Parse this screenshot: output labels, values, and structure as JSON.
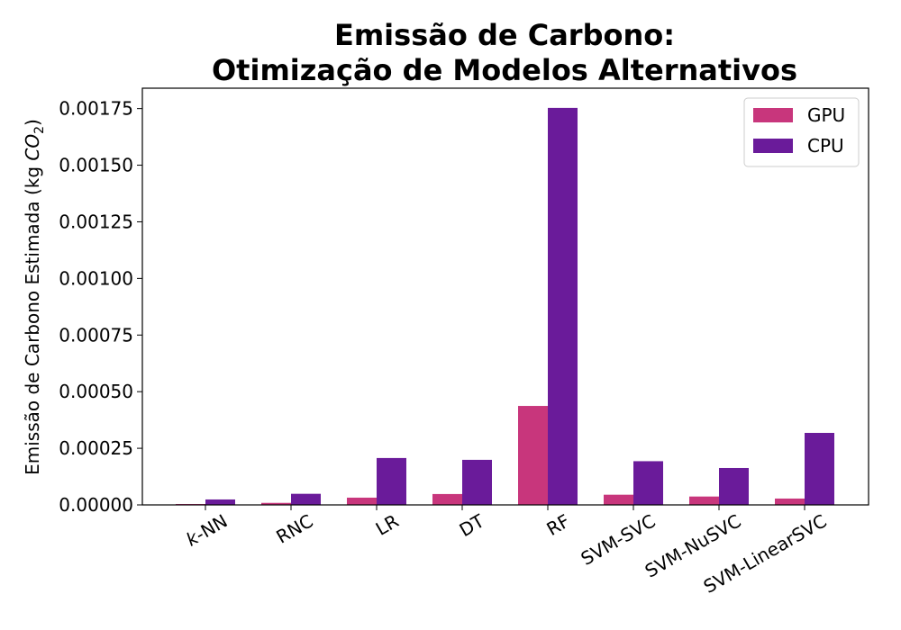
{
  "chart_data": {
    "type": "bar",
    "title_line1": "Emissão de Carbono:",
    "title_line2": "Otimização de Modelos Alternativos",
    "ylabel_prefix": "Emissão de Carbono Estimada (kg ",
    "ylabel_co": "CO",
    "ylabel_sub": "2",
    "ylabel_suffix": ")",
    "xlabel": "",
    "categories": [
      "k-NN",
      "RNC",
      "LR",
      "DT",
      "RF",
      "SVM-SVC",
      "SVM-NuSVC",
      "SVM-LinearSVC"
    ],
    "series": [
      {
        "name": "GPU",
        "color": "#c8367c",
        "values": [
          4e-06,
          9e-06,
          3.2e-05,
          4.8e-05,
          0.000437,
          4.5e-05,
          3.7e-05,
          2.8e-05
        ]
      },
      {
        "name": "CPU",
        "color": "#6a1b9a",
        "values": [
          2.4e-05,
          4.9e-05,
          0.000207,
          0.000199,
          0.001753,
          0.000193,
          0.000163,
          0.000318
        ]
      }
    ],
    "ylim": [
      0,
      0.00184
    ],
    "yticks": [
      "0.00000",
      "0.00025",
      "0.00050",
      "0.00075",
      "0.00100",
      "0.00125",
      "0.00150",
      "0.00175"
    ],
    "legend_position": "top-right",
    "grid": false
  }
}
